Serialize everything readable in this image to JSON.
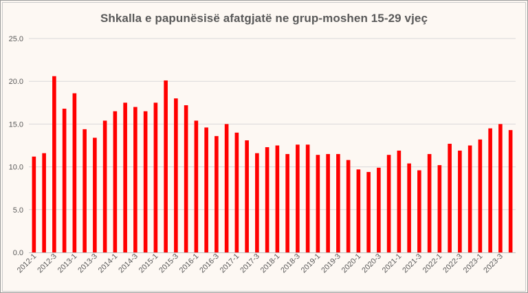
{
  "chart_data": {
    "type": "bar",
    "title": "Shkalla e papunësisë afatgjatë ne grup-moshen 15-29 vjeç",
    "xlabel": "",
    "ylabel": "",
    "ylim": [
      0,
      25
    ],
    "yticks": [
      "0.0",
      "5.0",
      "10.0",
      "15.0",
      "20.0",
      "25.0"
    ],
    "grid": true,
    "legend": "none",
    "bar_color": "#ff0000",
    "categories": [
      "2012-1",
      "2012-2",
      "2012-3",
      "2012-4",
      "2013-1",
      "2013-2",
      "2013-3",
      "2013-4",
      "2014-1",
      "2014-2",
      "2014-3",
      "2014-4",
      "2015-1",
      "2015-2",
      "2015-3",
      "2015-4",
      "2016-1",
      "2016-2",
      "2016-3",
      "2016-4",
      "2017-1",
      "2017-2",
      "2017-3",
      "2017-4",
      "2018-1",
      "2018-2",
      "2018-3",
      "2018-4",
      "2019-1",
      "2019-2",
      "2019-3",
      "2019-4",
      "2020-1",
      "2020-2",
      "2020-3",
      "2020-4",
      "2021-1",
      "2021-2",
      "2021-3",
      "2021-4",
      "2022-1",
      "2022-2",
      "2022-3",
      "2022-4",
      "2023-1",
      "2023-2",
      "2023-3",
      "2023-4"
    ],
    "tick_labels": [
      "2012-1",
      "2012-3",
      "2013-1",
      "2013-3",
      "2014-1",
      "2014-3",
      "2015-1",
      "2015-3",
      "2016-1",
      "2016-3",
      "2017-1",
      "2017-3",
      "2018-1",
      "2018-3",
      "2019-1",
      "2019-3",
      "2020-1",
      "2020-3",
      "2021-1",
      "2021-3",
      "2022-1",
      "2022-3",
      "2023-1",
      "2023-3"
    ],
    "values": [
      11.2,
      11.6,
      20.6,
      16.8,
      18.6,
      14.4,
      13.4,
      15.4,
      16.5,
      17.5,
      17.0,
      16.5,
      17.5,
      20.1,
      18.0,
      17.2,
      15.4,
      14.6,
      13.6,
      15.0,
      14.0,
      13.1,
      11.6,
      12.3,
      12.5,
      11.5,
      12.6,
      12.6,
      11.4,
      11.5,
      11.5,
      10.8,
      9.7,
      9.4,
      9.9,
      11.4,
      11.9,
      10.4,
      9.6,
      11.5,
      10.2,
      12.7,
      11.9,
      12.5,
      13.2,
      14.5,
      15.0,
      14.3
    ]
  }
}
